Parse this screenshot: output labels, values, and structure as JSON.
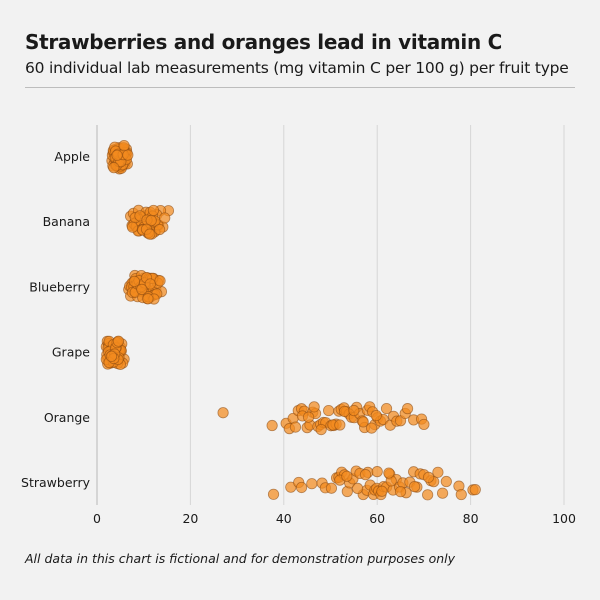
{
  "chart_data": {
    "type": "scatter",
    "title": "Strawberries and oranges lead in vitamin C",
    "subtitle": "60 individual lab measurements (mg vitamin C per 100 g) per fruit type",
    "footnote": "All data in this chart is fictional and for demonstration purposes only",
    "xlabel": "",
    "ylabel": "",
    "xlim": [
      0,
      100
    ],
    "xticks": [
      0,
      20,
      40,
      60,
      80,
      100
    ],
    "grid": "vertical",
    "point_color": "#f28a1e",
    "categories": [
      "Apple",
      "Banana",
      "Blueberry",
      "Grape",
      "Orange",
      "Strawberry"
    ],
    "series": [
      {
        "name": "Apple",
        "values": [
          3.2,
          3.5,
          4.1,
          4.8,
          5.2,
          5.9,
          6.3,
          4.4,
          3.8,
          4.6,
          5.1,
          5.5,
          6.0,
          3.9,
          4.2,
          4.9,
          5.7,
          6.5,
          3.4,
          4.0,
          4.7,
          5.3,
          5.8,
          6.1,
          3.6,
          4.3,
          5.0,
          5.4,
          6.2,
          3.3,
          4.5,
          4.8,
          5.6,
          6.4,
          3.7,
          4.1,
          5.2,
          5.9,
          4.6,
          3.5,
          4.4,
          5.0,
          5.5,
          6.0,
          3.9,
          4.2,
          4.9,
          5.7,
          6.3,
          3.8,
          4.7,
          5.3,
          5.1,
          4.0,
          4.5,
          5.6,
          6.6,
          3.6,
          4.3,
          5.8
        ]
      },
      {
        "name": "Banana",
        "values": [
          7.2,
          7.8,
          8.3,
          8.9,
          9.4,
          9.8,
          10.2,
          10.6,
          11.1,
          11.5,
          12.0,
          12.6,
          13.2,
          14.1,
          15.3,
          8.1,
          8.7,
          9.1,
          9.6,
          10.0,
          10.4,
          10.9,
          11.3,
          11.8,
          12.3,
          13.0,
          13.6,
          7.5,
          8.5,
          9.3,
          9.9,
          10.3,
          10.8,
          11.2,
          11.7,
          12.2,
          12.8,
          7.9,
          8.4,
          9.0,
          9.5,
          10.1,
          10.5,
          11.0,
          11.4,
          11.9,
          12.4,
          13.4,
          8.2,
          8.8,
          9.2,
          9.7,
          10.7,
          11.6,
          12.1,
          14.5,
          7.6,
          9.8,
          10.6,
          11.3
        ]
      },
      {
        "name": "Blueberry",
        "values": [
          6.8,
          7.2,
          7.7,
          8.1,
          8.5,
          8.9,
          9.3,
          9.7,
          10.1,
          10.5,
          10.9,
          11.3,
          11.7,
          12.1,
          12.6,
          13.2,
          13.8,
          7.0,
          7.5,
          8.0,
          8.4,
          8.8,
          9.2,
          9.6,
          10.0,
          10.4,
          10.8,
          11.2,
          11.6,
          12.0,
          12.4,
          13.0,
          7.4,
          7.9,
          8.3,
          8.7,
          9.1,
          9.5,
          9.9,
          10.3,
          10.7,
          11.1,
          11.5,
          11.9,
          12.8,
          7.6,
          8.2,
          8.6,
          9.0,
          9.4,
          9.8,
          10.2,
          10.6,
          11.0,
          11.4,
          12.2,
          13.5,
          8.0,
          9.6,
          10.9
        ]
      },
      {
        "name": "Grape",
        "values": [
          2.0,
          2.3,
          2.6,
          2.9,
          3.2,
          3.5,
          3.8,
          4.1,
          4.4,
          4.7,
          5.0,
          5.3,
          5.8,
          2.2,
          2.5,
          2.8,
          3.1,
          3.4,
          3.7,
          4.0,
          4.3,
          4.6,
          4.9,
          5.2,
          2.1,
          2.4,
          2.7,
          3.0,
          3.3,
          3.6,
          3.9,
          4.2,
          4.5,
          4.8,
          5.1,
          5.5,
          2.3,
          2.6,
          2.9,
          3.2,
          3.5,
          3.8,
          4.1,
          4.4,
          4.7,
          5.0,
          2.0,
          2.5,
          3.0,
          3.5,
          4.0,
          4.5,
          2.8,
          3.3,
          3.8,
          4.3,
          2.6,
          3.6,
          4.6,
          3.1
        ]
      },
      {
        "name": "Orange",
        "values": [
          27.0,
          37.5,
          40.5,
          41.2,
          42.0,
          42.5,
          43.1,
          43.8,
          44.4,
          45.0,
          45.6,
          46.2,
          46.8,
          47.3,
          47.9,
          48.5,
          49.0,
          49.6,
          50.1,
          50.7,
          51.2,
          51.8,
          52.3,
          52.9,
          53.4,
          54.0,
          54.5,
          55.1,
          55.6,
          56.2,
          56.8,
          57.3,
          57.9,
          58.4,
          59.0,
          59.5,
          60.1,
          60.7,
          61.3,
          62.0,
          62.8,
          63.5,
          64.2,
          65.0,
          66.0,
          66.5,
          67.8,
          69.5,
          70.0,
          44.0,
          46.5,
          48.0,
          50.5,
          52.0,
          53.0,
          55.0,
          57.0,
          58.8,
          59.8,
          45.3
        ]
      },
      {
        "name": "Strawberry",
        "values": [
          37.8,
          41.5,
          43.2,
          43.8,
          46.0,
          48.2,
          48.9,
          50.2,
          51.3,
          51.8,
          52.4,
          53.0,
          53.6,
          54.1,
          54.8,
          55.5,
          56.3,
          57.0,
          57.8,
          58.5,
          59.2,
          59.5,
          59.9,
          60.3,
          60.8,
          61.4,
          62.0,
          62.7,
          63.4,
          64.1,
          64.8,
          65.5,
          66.2,
          67.0,
          67.8,
          68.5,
          69.2,
          70.0,
          70.8,
          71.5,
          72.1,
          73.0,
          74.0,
          74.8,
          77.5,
          78.0,
          80.5,
          81.0,
          52.0,
          53.5,
          55.8,
          58.0,
          60.0,
          61.0,
          63.0,
          65.0,
          68.0,
          71.0,
          57.5,
          62.5
        ]
      }
    ]
  }
}
